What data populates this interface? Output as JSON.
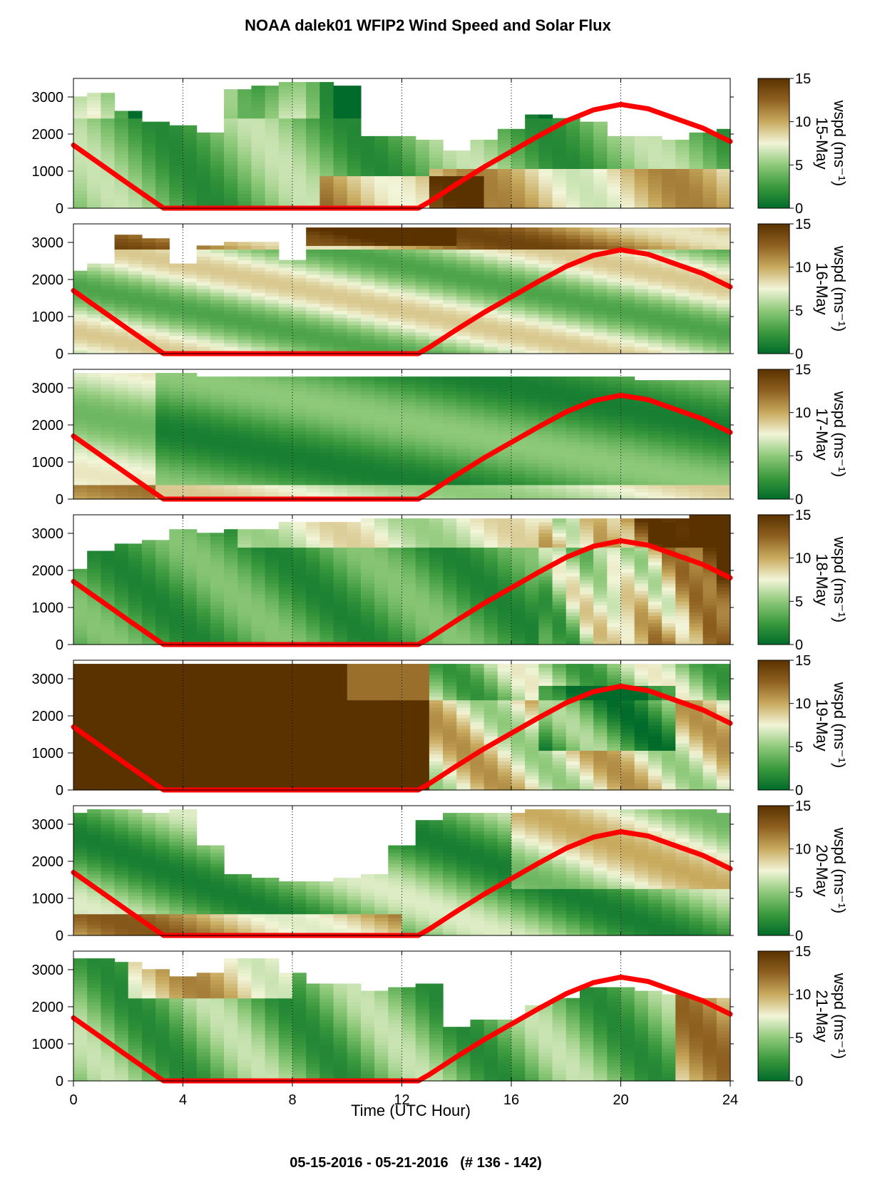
{
  "title": "NOAA dalek01 WFIP2 Wind Speed and Solar Flux",
  "footer": "05-15-2016 - 05-21-2016   (# 136 - 142)",
  "chart_data": {
    "type": "heatmap",
    "xlabel": "Time (UTC Hour)",
    "xlim": [
      0,
      24
    ],
    "x_ticks": [
      0,
      4,
      8,
      12,
      16,
      20,
      24
    ],
    "ylim": [
      0,
      3500
    ],
    "y_ticks": [
      0,
      1000,
      2000,
      3000
    ],
    "gridlines_x": [
      4,
      8,
      12,
      16,
      20
    ],
    "colorbar": {
      "label": "wspd (ms⁻¹)",
      "range": [
        0,
        15
      ],
      "ticks": [
        0,
        5,
        10,
        15
      ],
      "colors": [
        "#006b2a",
        "#3c9a3e",
        "#8ec97a",
        "#f2f5d8",
        "#c8aa5e",
        "#8e6020",
        "#5a3200"
      ]
    },
    "solar_flux_color": "#ff0000",
    "solar_flux_curve": {
      "x": [
        0,
        1,
        2,
        3,
        3.3,
        12.6,
        13,
        14,
        15,
        16,
        17,
        18,
        19,
        20,
        21,
        22,
        23,
        24
      ],
      "y": [
        1700,
        1180,
        660,
        150,
        0,
        0,
        170,
        650,
        1110,
        1530,
        1950,
        2350,
        2650,
        2800,
        2680,
        2420,
        2160,
        1800
      ]
    },
    "panels": [
      {
        "date": "15-May",
        "top_height": [
          3000,
          3150,
          2600,
          2300,
          2200,
          2000,
          3200,
          3350,
          3400,
          3400,
          3300,
          1900,
          1900,
          1800,
          1600,
          1800,
          2100,
          2500,
          2400,
          2300,
          1900,
          1900,
          1800,
          2000,
          2100
        ]
      },
      {
        "date": "16-May",
        "top_height": [
          2200,
          2400,
          3200,
          3100,
          2400,
          2900,
          3000,
          3000,
          2500,
          3450,
          3450,
          3450,
          3450,
          3450,
          3450,
          3450,
          3450,
          3450,
          3450,
          3450,
          3450,
          3450,
          3450,
          3450,
          3450
        ]
      },
      {
        "date": "17-May",
        "top_height": [
          3400,
          3400,
          3400,
          3400,
          3400,
          3300,
          3300,
          3300,
          3300,
          3300,
          3300,
          3300,
          3300,
          3300,
          3300,
          3300,
          3300,
          3300,
          3300,
          3300,
          3300,
          3200,
          3200,
          3200,
          3200
        ]
      },
      {
        "date": "18-May",
        "top_height": [
          2000,
          2500,
          2700,
          2800,
          3100,
          3000,
          3100,
          3100,
          3300,
          3300,
          3300,
          3400,
          3400,
          3400,
          3400,
          3400,
          3400,
          3400,
          3400,
          3400,
          3400,
          3400,
          3450,
          3500,
          3500
        ]
      },
      {
        "date": "19-May",
        "top_height": [
          3450,
          3450,
          3450,
          3450,
          3450,
          3450,
          3450,
          3450,
          3450,
          3450,
          3450,
          3450,
          3450,
          3450,
          3400,
          3400,
          3400,
          3400,
          3400,
          3400,
          3400,
          3400,
          3400,
          3400,
          3400
        ]
      },
      {
        "date": "20-May",
        "top_height": [
          3300,
          3400,
          3400,
          3300,
          3400,
          2400,
          1700,
          1600,
          1500,
          1500,
          1600,
          1700,
          2400,
          3100,
          3300,
          3300,
          3300,
          3400,
          3400,
          3400,
          3400,
          3400,
          3400,
          3400,
          3300
        ]
      },
      {
        "date": "21-May",
        "top_height": [
          3300,
          3300,
          3200,
          3000,
          2800,
          2900,
          3300,
          3300,
          2900,
          2600,
          2600,
          2400,
          2500,
          2600,
          1500,
          1700,
          1700,
          2000,
          2200,
          2500,
          2500,
          2400,
          2300,
          2200,
          2200
        ]
      }
    ]
  }
}
